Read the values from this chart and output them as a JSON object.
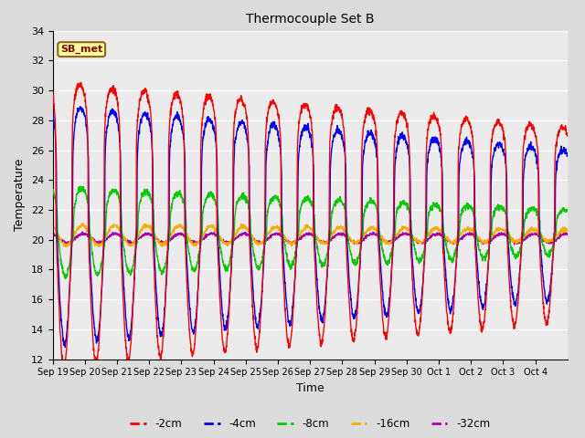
{
  "title": "Thermocouple Set B",
  "xlabel": "Time",
  "ylabel": "Temperature",
  "ylim": [
    12,
    34
  ],
  "yticks": [
    12,
    14,
    16,
    18,
    20,
    22,
    24,
    26,
    28,
    30,
    32,
    34
  ],
  "series_colors": {
    "-2cm": "#ff0000",
    "-4cm": "#0000ff",
    "-8cm": "#00cc00",
    "-16cm": "#ffaa00",
    "-32cm": "#aa00aa"
  },
  "annotation_text": "SB_met",
  "background_color": "#dcdcdc",
  "plot_bg_color": "#ebebeb",
  "grid_color": "#ffffff",
  "x_tick_labels": [
    "Sep 19",
    "Sep 20",
    "Sep 21",
    "Sep 22",
    "Sep 23",
    "Sep 24",
    "Sep 25",
    "Sep 26",
    "Sep 27",
    "Sep 28",
    "Sep 29",
    "Sep 30",
    "Oct 1",
    "Oct 2",
    "Oct 3",
    "Oct 4"
  ],
  "n_days": 16
}
